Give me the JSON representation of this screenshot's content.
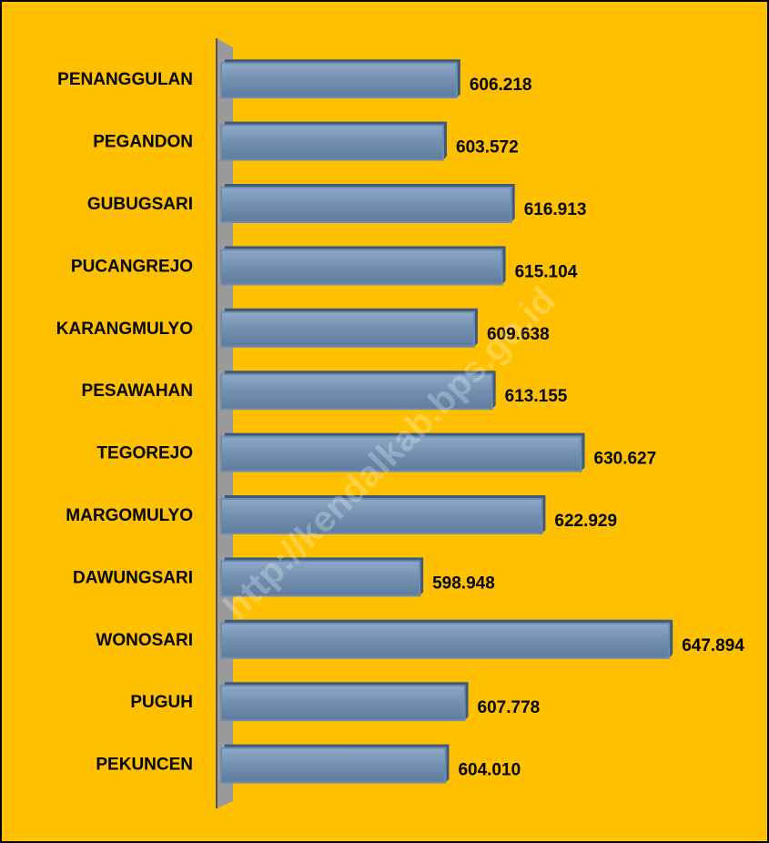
{
  "chart_data": {
    "type": "bar",
    "orientation": "horizontal",
    "categories": [
      "PENANGGULAN",
      "PEGANDON",
      "GUBUGSARI",
      "PUCANGREJO",
      "KARANGMULYO",
      "PESAWAHAN",
      "TEGOREJO",
      "MARGOMULYO",
      "DAWUNGSARI",
      "WONOSARI",
      "PUGUH",
      "PEKUNCEN"
    ],
    "values": [
      606218,
      603572,
      616913,
      615104,
      609638,
      613155,
      630627,
      622929,
      598948,
      647894,
      607778,
      604010
    ],
    "value_labels": [
      "606.218",
      "603.572",
      "616.913",
      "615.104",
      "609.638",
      "613.155",
      "630.627",
      "622.929",
      "598.948",
      "647.894",
      "607.778",
      "604.010"
    ],
    "color": "#6f8db0",
    "background": "#ffc000",
    "xlim": [
      560000,
      650000
    ],
    "watermark": "http://kendalkab.bps.go.id"
  }
}
